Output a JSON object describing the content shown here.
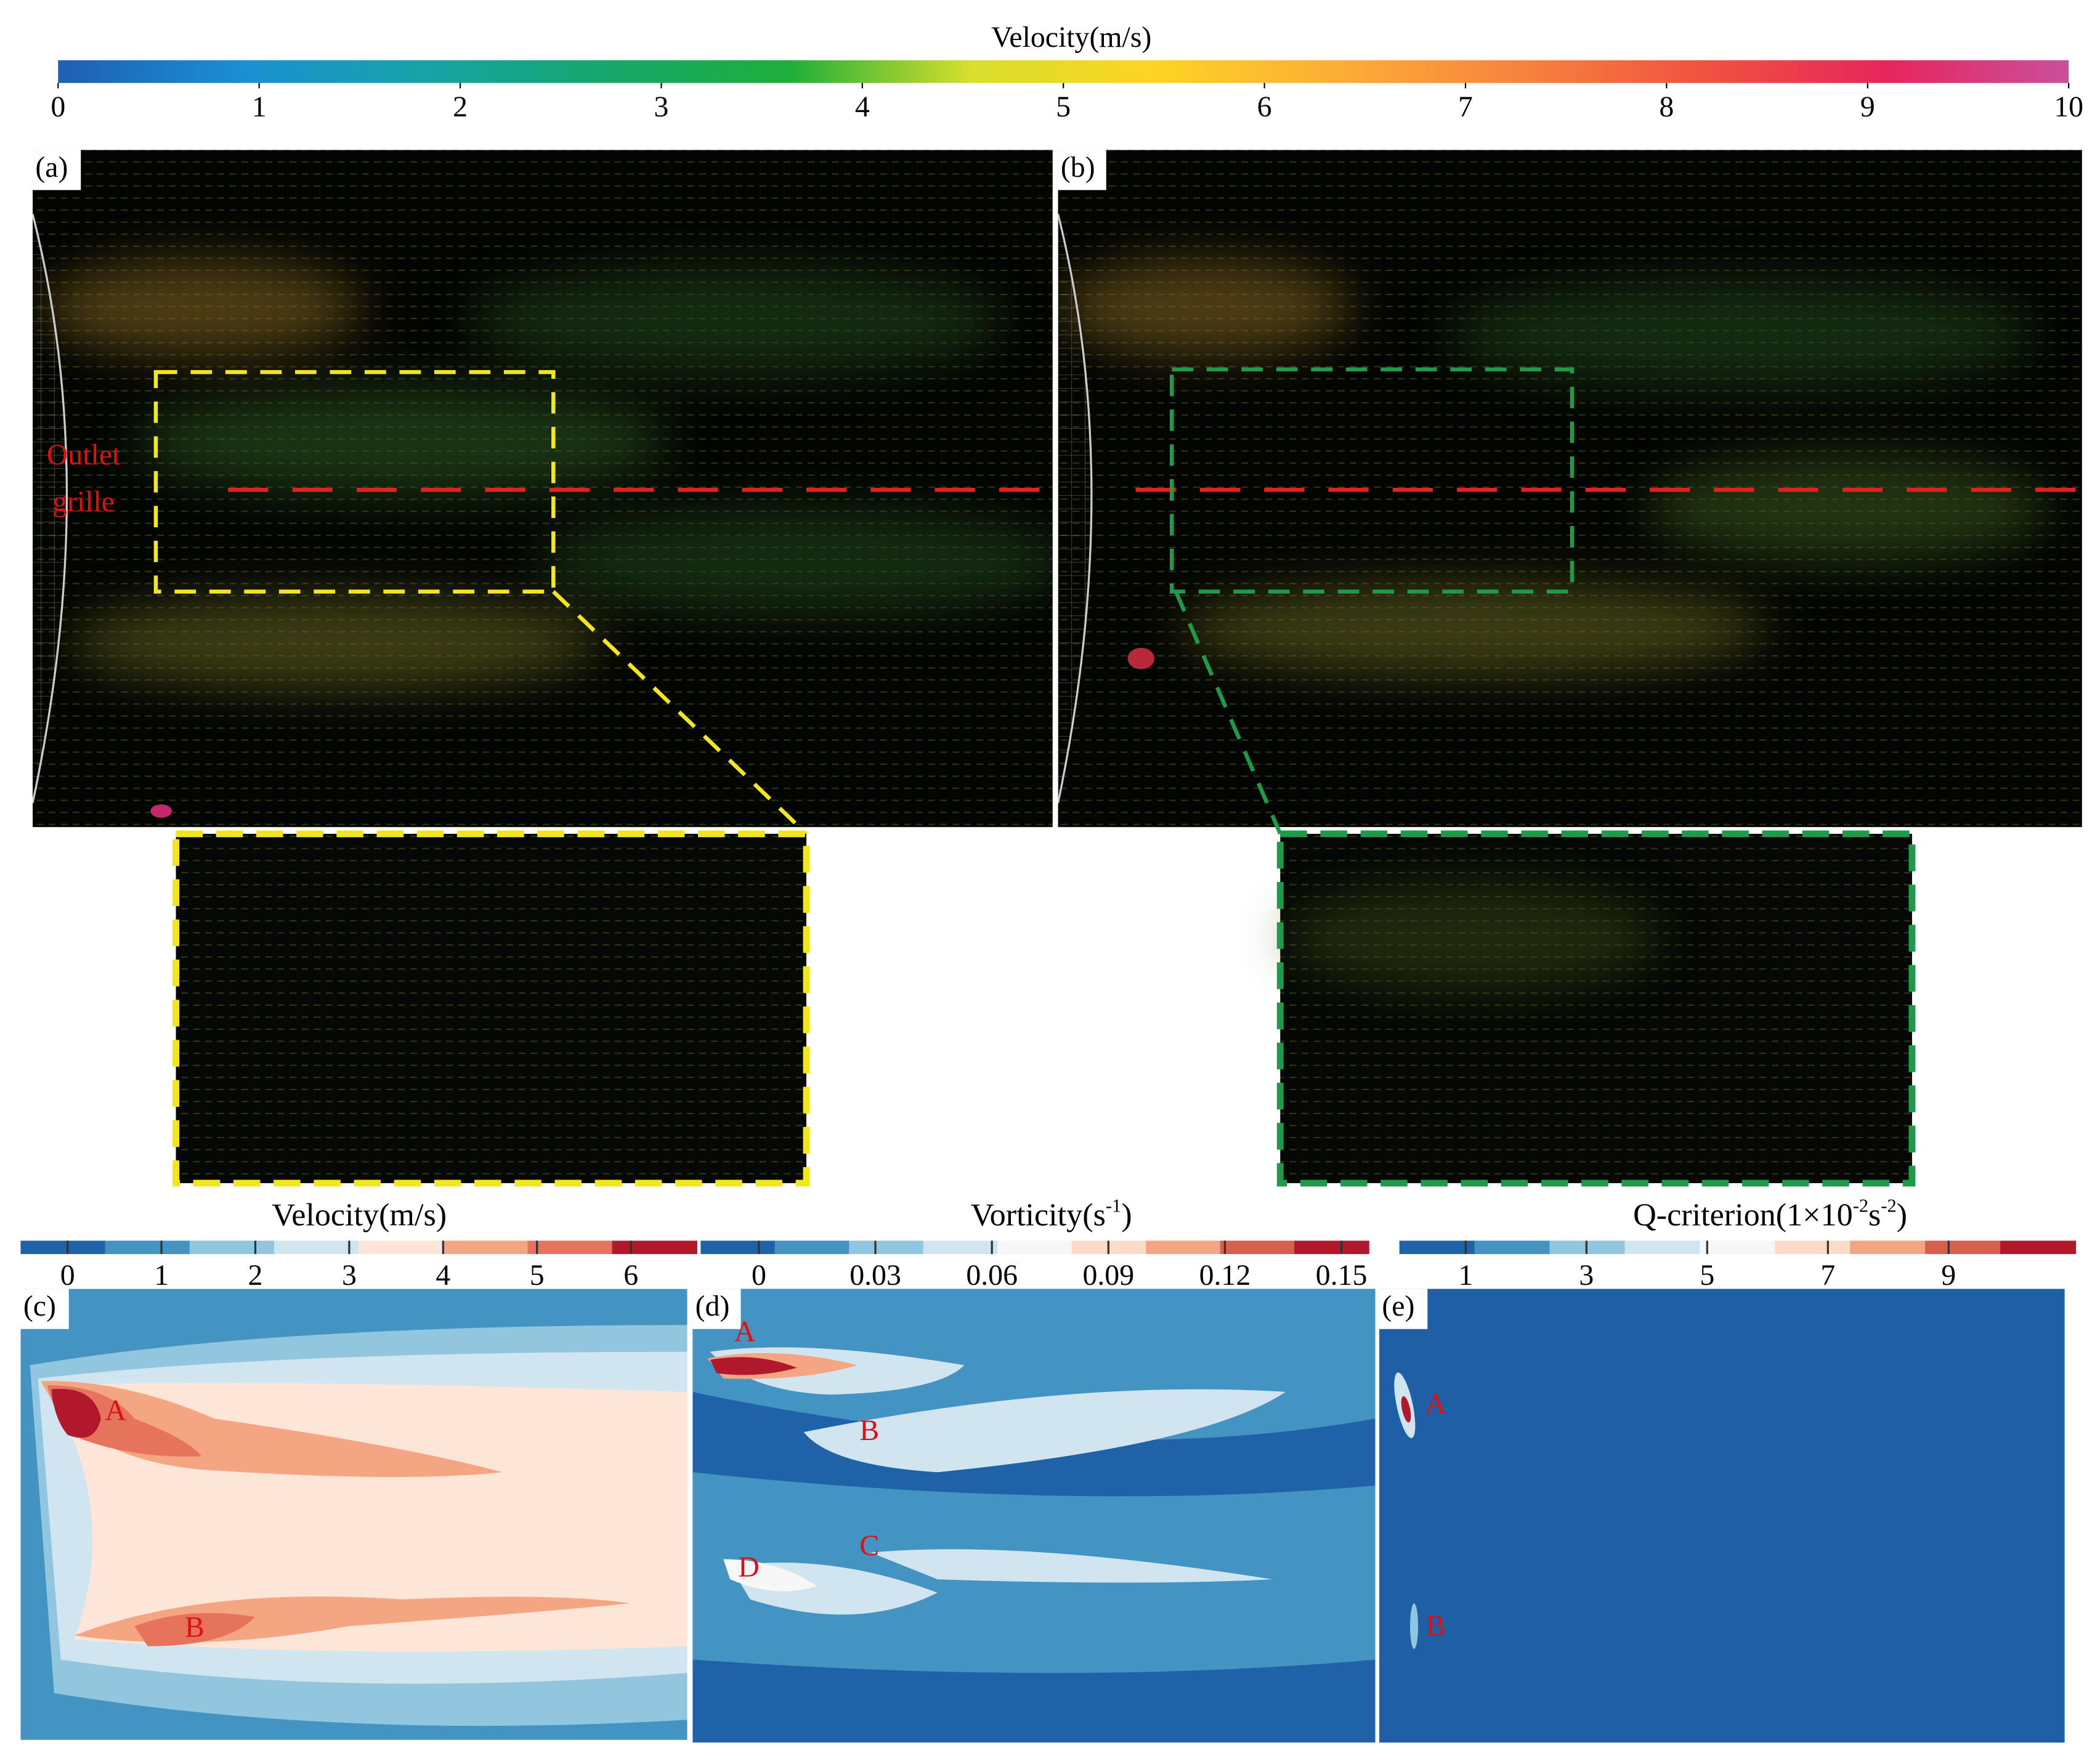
{
  "top_colorbar": {
    "title": "Velocity(m/s)",
    "lim": [
      0,
      10
    ],
    "ticks": [
      0,
      1,
      2,
      3,
      4,
      5,
      6,
      7,
      8,
      9,
      10
    ],
    "colors": [
      "#1f5fb0",
      "#1a8fd2",
      "#17a3a8",
      "#16a66b",
      "#1fae3a",
      "#d9df2c",
      "#fdd424",
      "#fcae36",
      "#f7833e",
      "#f0533f",
      "#e7255c",
      "#c9509c"
    ]
  },
  "panel_a": {
    "label": "(a)",
    "annotation": [
      "Outlet",
      "grille"
    ]
  },
  "panel_b": {
    "label": "(b)"
  },
  "panel_c": {
    "label": "(c)",
    "markers": [
      "A",
      "B"
    ],
    "colorbar": {
      "title": [
        "Velocity(m/s)"
      ],
      "lim": [
        -0.5,
        6.7
      ],
      "ticks": [
        0,
        1,
        2,
        3,
        4,
        5,
        6
      ],
      "colors": [
        "#1f62a8",
        "#4393c3",
        "#92c5de",
        "#d1e5f0",
        "#fde6d8",
        "#f4a582",
        "#e6735c",
        "#b2182b"
      ]
    }
  },
  "panel_d": {
    "label": "(d)",
    "markers": [
      "A",
      "B",
      "C",
      "D"
    ],
    "colorbar": {
      "title": [
        "Vorticity(s",
        "-1",
        ")"
      ],
      "lim": [
        -0.015,
        0.157
      ],
      "ticks": [
        0,
        0.03,
        0.06,
        0.09,
        0.12,
        0.15
      ],
      "colors": [
        "#1f62a8",
        "#4393c3",
        "#92c5de",
        "#d1e5f0",
        "#f7f7f7",
        "#fddbc7",
        "#f4a582",
        "#d6604d",
        "#b2182b"
      ]
    }
  },
  "panel_e": {
    "label": "(e)",
    "markers": [
      "A",
      "B"
    ],
    "colorbar": {
      "title": [
        "Q-criterion(1×10",
        "-2",
        "s",
        "-2",
        ")"
      ],
      "lim": [
        -0.1,
        11.1
      ],
      "ticks": [
        1,
        3,
        5,
        7,
        9
      ],
      "colors": [
        "#1f62a8",
        "#4393c3",
        "#92c5de",
        "#d1e5f0",
        "#f7f7f7",
        "#fddbc7",
        "#f4a582",
        "#d6604d",
        "#b2182b"
      ]
    }
  }
}
